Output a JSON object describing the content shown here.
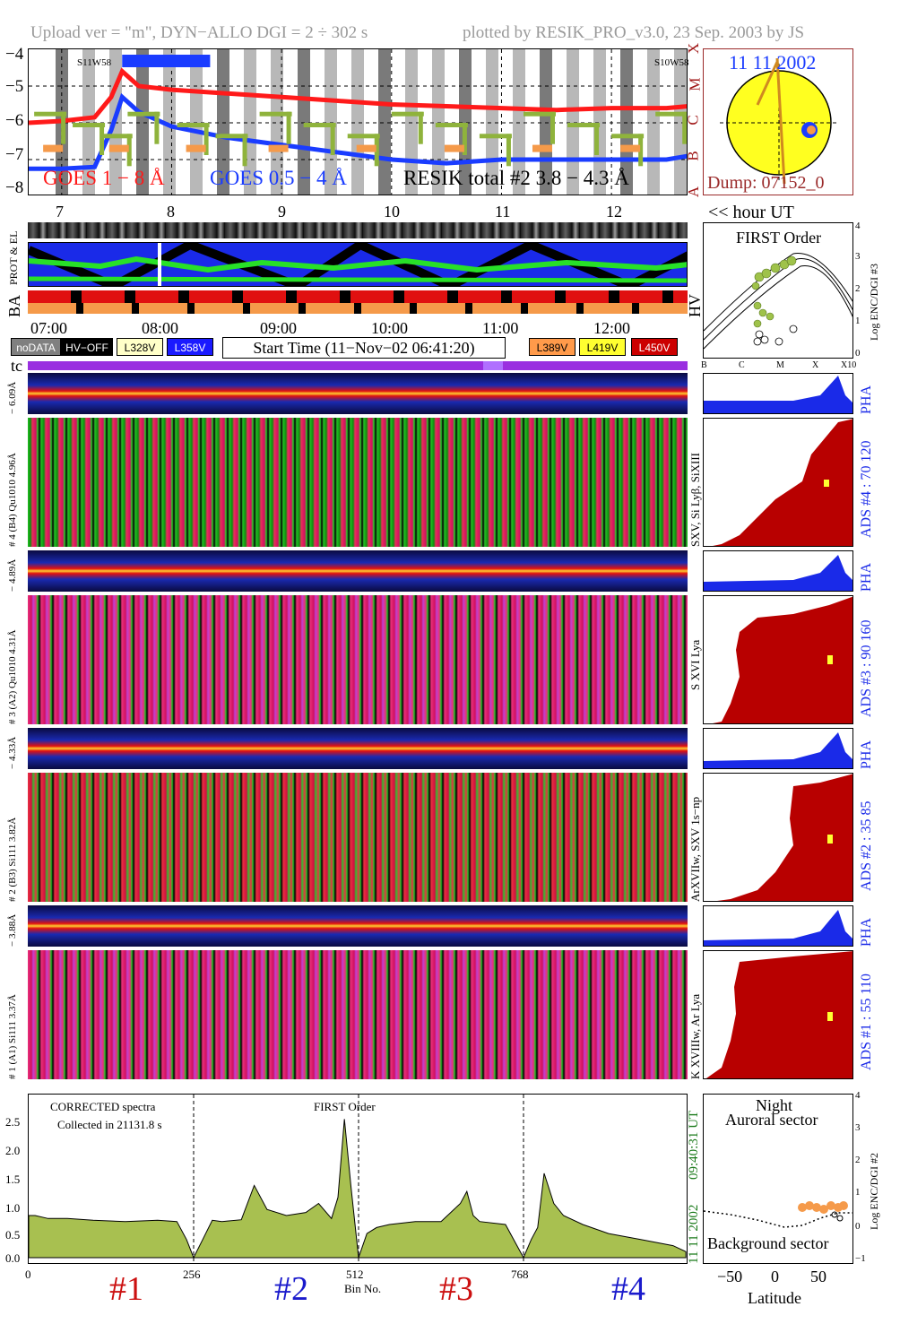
{
  "header": {
    "left": "Upload ver = \"m\", DYN−ALLO DGI =   2 ÷ 302 s",
    "right": "plotted by RESIK_PRO_v3.0, 23 Sep. 2003 by JS"
  },
  "light_curve": {
    "y_ticks": [
      "−4",
      "−5",
      "−6",
      "−7",
      "−8"
    ],
    "goes_long_label": "GOES 1 − 8 Å",
    "goes_short_label": "GOES 0.5 − 4 Å",
    "resik_label": "RESIK total #2  3.8 − 4.3 Å",
    "flare_class_ticks": [
      "X",
      "M",
      "C",
      "B",
      "A"
    ],
    "start_marker": "S11W58",
    "end_marker": "S10W58",
    "hour_ticks": [
      "7",
      "8",
      "9",
      "10",
      "11",
      "12"
    ],
    "hour_axis_label": "<< hour UT",
    "colors": {
      "goes_long": "#ff1a1a",
      "goes_short": "#1a3cff",
      "resik": "#8fb33c",
      "resik_orange": "#f59a4a"
    }
  },
  "sun_panel": {
    "date": "11 11 2002",
    "dump": "Dump: 07152_0"
  },
  "status_strip": {
    "labels": [
      "PROT & EL",
      "BA",
      "HV"
    ],
    "time_ticks": [
      "07:00",
      "08:00",
      "09:00",
      "10:00",
      "11:00",
      "12:00"
    ],
    "start_time": "Start Time (11−Nov−02 06:41:20)",
    "legend": [
      {
        "label": "noDATA",
        "color": "#808080",
        "text_color": "#ffffff"
      },
      {
        "label": "HV−OFF",
        "color": "#000000",
        "text_color": "#ffffff"
      },
      {
        "label": "L328V",
        "color": "#ffffc8",
        "text_color": "#000000"
      },
      {
        "label": "L358V",
        "color": "#1a1aff",
        "text_color": "#ffffff"
      },
      {
        "label": "L389V",
        "color": "#ff9a4a",
        "text_color": "#000000"
      },
      {
        "label": "L419V",
        "color": "#ffff30",
        "text_color": "#000000"
      },
      {
        "label": "L450V",
        "color": "#cc0000",
        "text_color": "#ffffff"
      }
    ],
    "tc_label": "tc"
  },
  "first_order_panel": {
    "title": "FIRST Order",
    "y_label": "Log ENC/DGI #3",
    "y_ticks": [
      "4",
      "3",
      "2",
      "1",
      "0"
    ],
    "x_ticks": [
      "B",
      "C",
      "M",
      "X",
      "X10"
    ]
  },
  "channels": [
    {
      "pha_label": "− 6.09Å",
      "label": "# 4 (B4) Qu1010 4.96Å",
      "lines": "SXV, Si Lyβ, SiXIII",
      "ads": "ADS #4 :   70 120"
    },
    {
      "pha_label": "− 4.89Å",
      "label": "# 3 (A2) Qu1010 4.31Å",
      "lines": "S XVI Lya",
      "ads": "ADS #3 :   90 160"
    },
    {
      "pha_label": "− 4.33Å",
      "label": "# 2 (B3) Si111 3.82Å",
      "lines": "ArXVIIw, SXV 1s−np",
      "ads": "ADS #2 :   35 85"
    },
    {
      "pha_label": "− 3.88Å",
      "label": "# 1 (A1) Si111 3.37Å",
      "lines": "K XVIIIw, Ar Lya",
      "ads": "ADS #1 :   55 110"
    }
  ],
  "pha_label": "PHA",
  "spectrum": {
    "note_line1": "CORRECTED spectra",
    "note_line2": "Collected in 21131.8 s",
    "order_label": "FIRST Order",
    "y_ticks": [
      "2.5",
      "2.0",
      "1.5",
      "1.0",
      "0.5",
      "0.0"
    ],
    "x_ticks": [
      "0",
      "256",
      "512",
      "768"
    ],
    "xlabel": "Bin No.",
    "date_stamp": "11 11 2002",
    "time_stamp": "09:40:31 UT",
    "channel_marks": [
      "#1",
      "#2",
      "#3",
      "#4"
    ]
  },
  "latitude_panel": {
    "title1": "Night",
    "title2": "Auroral sector",
    "bottom": "Background sector",
    "y_label": "Log ENC/DGI #2",
    "y_ticks": [
      "4",
      "3",
      "2",
      "1",
      "0",
      "−1"
    ],
    "x_ticks": [
      "−50",
      "0",
      "50"
    ],
    "xlabel": "Latitude"
  },
  "chart_data": [
    {
      "type": "line",
      "title": "",
      "xlabel": "",
      "ylabel": "",
      "x_unit": "hour UT",
      "xlim": [
        6.7,
        12.7
      ],
      "ylim": [
        -8,
        -4
      ],
      "series": [
        {
          "name": "GOES 1 − 8 Å",
          "x": [
            6.7,
            7.0,
            7.3,
            7.45,
            7.55,
            7.7,
            8.0,
            8.5,
            9.0,
            9.5,
            10.0,
            10.5,
            11.0,
            11.5,
            12.0,
            12.5,
            12.7
          ],
          "y": [
            -6.0,
            -5.95,
            -5.85,
            -5.3,
            -4.6,
            -5.0,
            -5.1,
            -5.2,
            -5.3,
            -5.4,
            -5.5,
            -5.55,
            -5.6,
            -5.65,
            -5.6,
            -5.6,
            -5.55
          ]
        },
        {
          "name": "GOES 0.5 − 4 Å",
          "x": [
            6.7,
            7.0,
            7.3,
            7.45,
            7.55,
            7.7,
            8.0,
            8.5,
            9.0,
            9.5,
            10.0,
            10.5,
            11.0,
            11.5,
            12.0,
            12.5,
            12.7
          ],
          "y": [
            -7.25,
            -7.25,
            -7.2,
            -6.2,
            -5.3,
            -5.7,
            -6.1,
            -6.4,
            -6.6,
            -6.8,
            -7.0,
            -7.1,
            -7.0,
            -7.0,
            -7.0,
            -7.0,
            -6.9
          ]
        }
      ]
    },
    {
      "type": "area",
      "title": "",
      "xlabel": "Bin No.",
      "ylabel": "",
      "xlim": [
        0,
        1024
      ],
      "ylim": [
        0,
        2.5
      ],
      "x": [
        0,
        10,
        30,
        60,
        100,
        150,
        200,
        230,
        245,
        256,
        270,
        285,
        300,
        330,
        350,
        370,
        400,
        430,
        450,
        470,
        480,
        490,
        500,
        512,
        525,
        540,
        560,
        600,
        640,
        670,
        680,
        690,
        700,
        740,
        768,
        780,
        790,
        800,
        815,
        830,
        860,
        900,
        950,
        1000,
        1020
      ],
      "y": [
        0.7,
        0.7,
        0.65,
        0.65,
        0.62,
        0.6,
        0.62,
        0.6,
        0.3,
        0.0,
        0.3,
        0.62,
        0.6,
        0.63,
        1.2,
        0.8,
        0.7,
        0.75,
        0.9,
        0.65,
        1.0,
        2.3,
        1.2,
        0.0,
        0.4,
        0.5,
        0.55,
        0.6,
        0.6,
        0.9,
        1.1,
        0.7,
        0.6,
        0.55,
        0.0,
        0.3,
        0.5,
        1.4,
        0.9,
        0.7,
        0.55,
        0.4,
        0.3,
        0.2,
        0.1
      ]
    }
  ]
}
